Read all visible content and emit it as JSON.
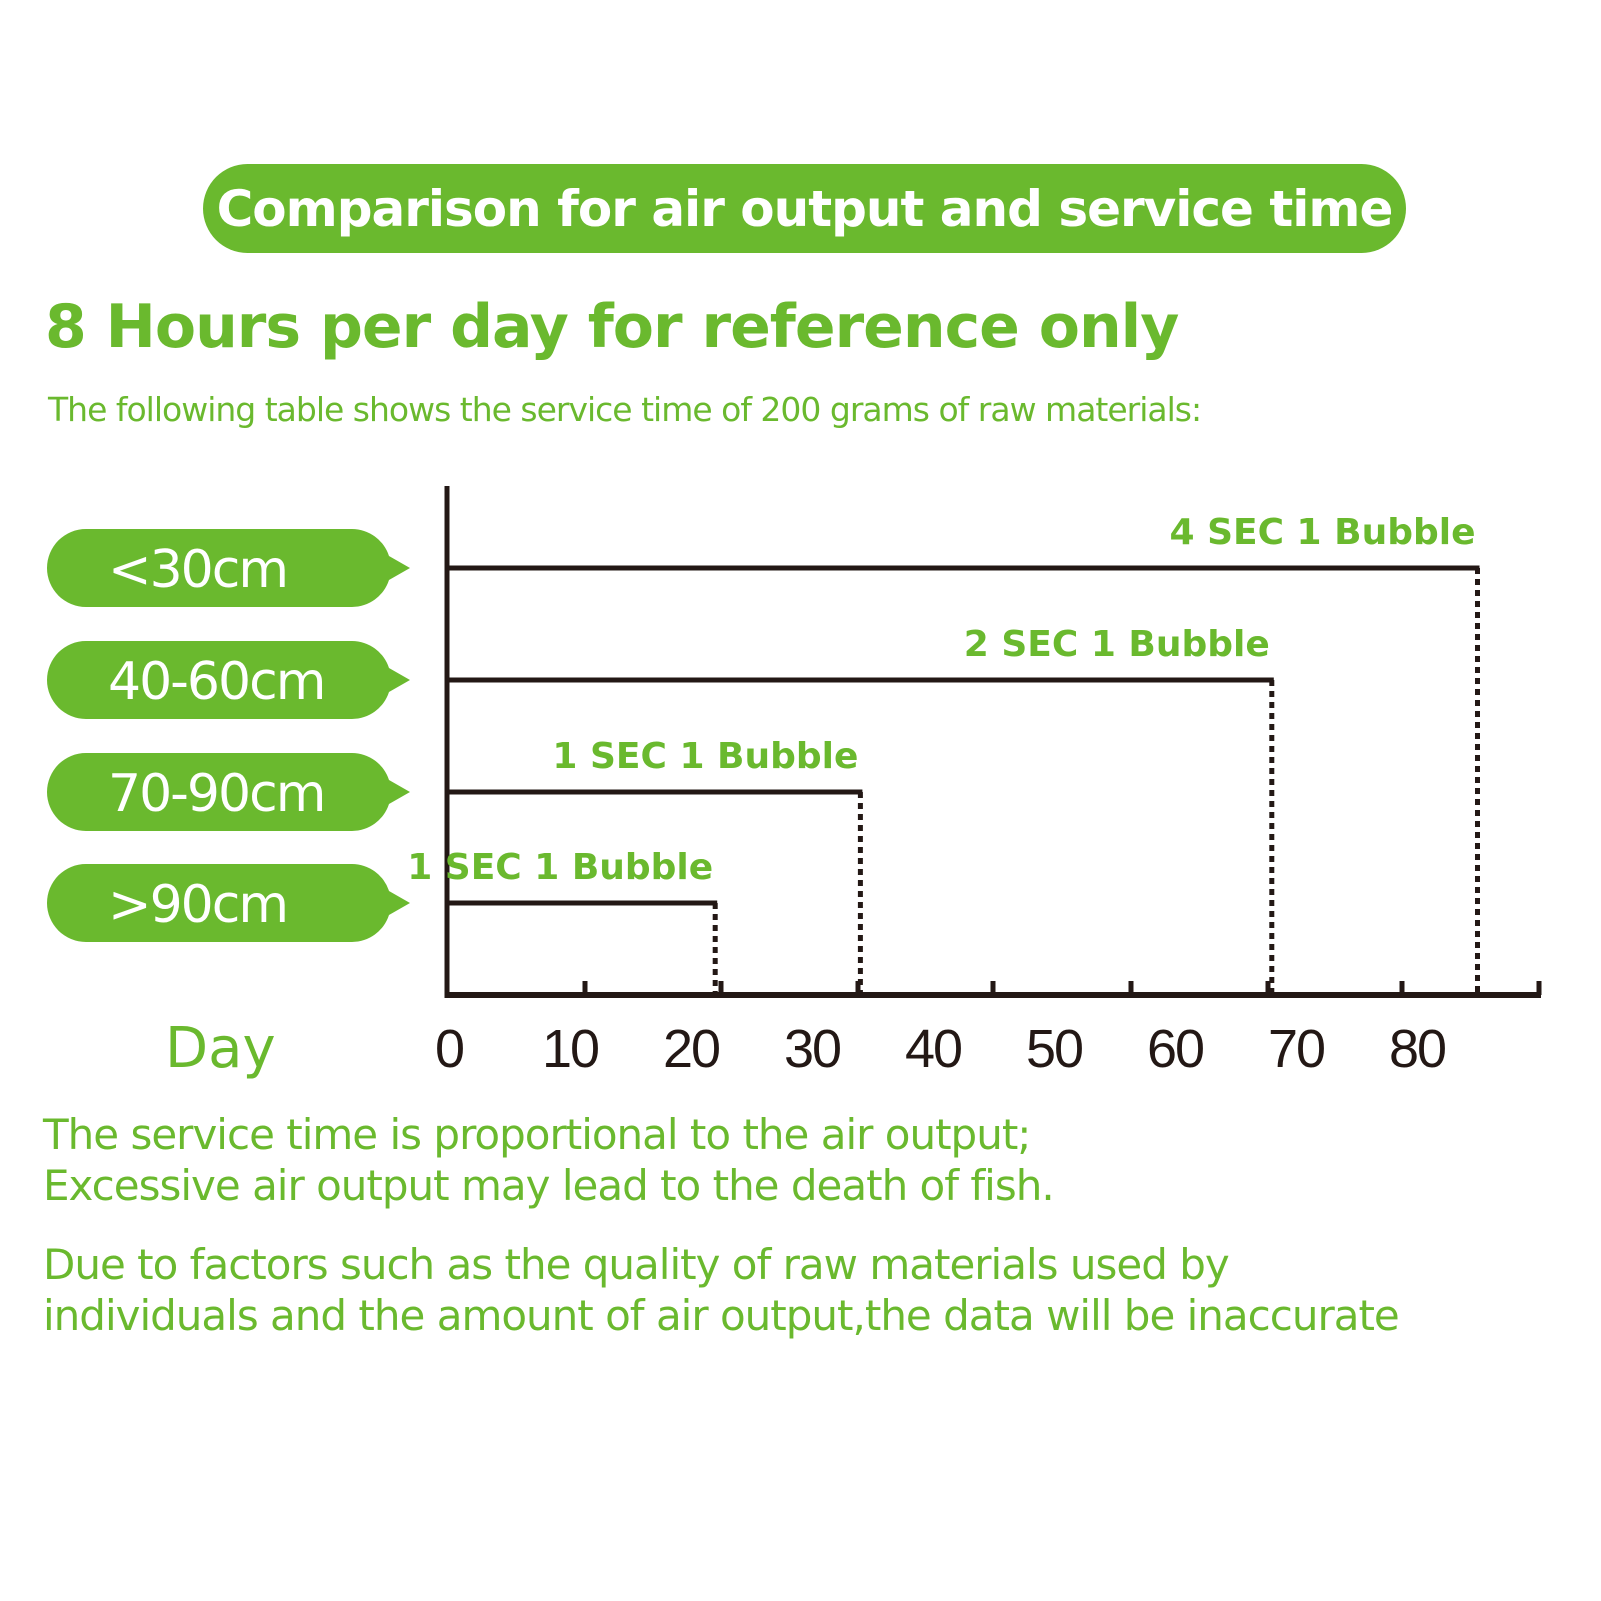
{
  "header": {
    "title": "Comparison for air output and service time",
    "heading": "8 Hours per day for reference only",
    "subtitle": "The following table shows the service time of 200 grams of raw materials:"
  },
  "colors": {
    "accent": "#6ab92e",
    "axis": "#231815"
  },
  "chart_data": {
    "type": "bar",
    "orientation": "horizontal",
    "categories": [
      "<30cm",
      "40-60cm",
      "70-90cm",
      ">90cm"
    ],
    "values": [
      85,
      68,
      34,
      22
    ],
    "data_labels": [
      "4 SEC 1 Bubble",
      "2 SEC 1 Bubble",
      "1 SEC 1 Bubble",
      "1 SEC 1 Bubble"
    ],
    "xlabel": "Day",
    "x_ticks": [
      "0",
      "10",
      "20",
      "30",
      "40",
      "50",
      "60",
      "70",
      "80"
    ],
    "xlim": [
      0,
      90
    ],
    "grid": false
  },
  "footer": {
    "line1": "The service time is proportional to the air output;",
    "line2": "Excessive air output may lead to the death of fish.",
    "line3": "Due to factors such as the quality of raw materials used by",
    "line4": "individuals and the amount of air output,the data will be inaccurate"
  }
}
